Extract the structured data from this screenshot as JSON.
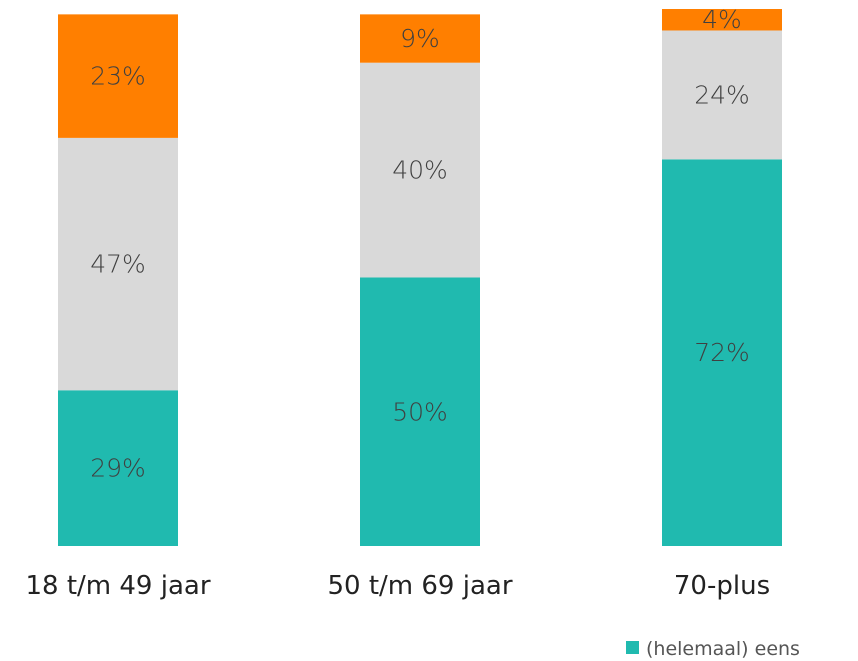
{
  "chart_data": {
    "type": "bar",
    "stacked": true,
    "categories": [
      "18 t/m 49 jaar",
      "50 t/m 69 jaar",
      "70-plus"
    ],
    "series": [
      {
        "name": "(helemaal) eens",
        "values": [
          29,
          50,
          72
        ],
        "labels": [
          "29%",
          "50%",
          "72%"
        ],
        "color": "#20BAAF"
      },
      {
        "name": "",
        "values": [
          47,
          40,
          24
        ],
        "labels": [
          "47%",
          "40%",
          "24%"
        ],
        "color": "#D9D9D9"
      },
      {
        "name": "",
        "values": [
          23,
          9,
          4
        ],
        "labels": [
          "23%",
          "9%",
          "4%"
        ],
        "color": "#FF7F00"
      }
    ],
    "legend": {
      "position": "bottom-right",
      "visible_entries": [
        "(helemaal) eens"
      ]
    },
    "ylim": [
      0,
      100
    ],
    "grid": false
  }
}
